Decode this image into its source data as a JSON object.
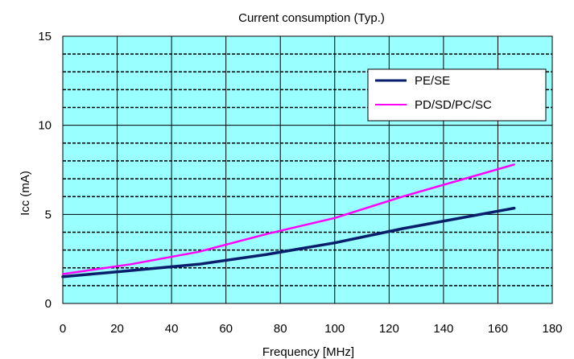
{
  "chart_data": {
    "type": "line",
    "title": "Current consumption (Typ.)",
    "xlabel": "Frequency [MHz]",
    "ylabel": "Icc (mA)",
    "xlim": [
      0,
      180
    ],
    "ylim": [
      0,
      15
    ],
    "xticks": [
      "0",
      "20",
      "40",
      "60",
      "80",
      "100",
      "120",
      "140",
      "160",
      "180"
    ],
    "yticks": [
      "0",
      "5",
      "10",
      "15"
    ],
    "grid": true,
    "legend_position": "top-right",
    "plot_background": "#99ffff",
    "series": [
      {
        "name": "PE/SE",
        "color": "#0a1f6b",
        "points": [
          [
            0,
            1.5
          ],
          [
            25,
            1.85
          ],
          [
            50,
            2.2
          ],
          [
            75,
            2.75
          ],
          [
            100,
            3.4
          ],
          [
            125,
            4.2
          ],
          [
            166,
            5.35
          ]
        ]
      },
      {
        "name": "PD/SD/PC/SC",
        "color": "#ff00ff",
        "points": [
          [
            0,
            1.65
          ],
          [
            25,
            2.2
          ],
          [
            50,
            2.9
          ],
          [
            75,
            3.9
          ],
          [
            100,
            4.8
          ],
          [
            125,
            6.0
          ],
          [
            166,
            7.8
          ]
        ]
      }
    ]
  }
}
